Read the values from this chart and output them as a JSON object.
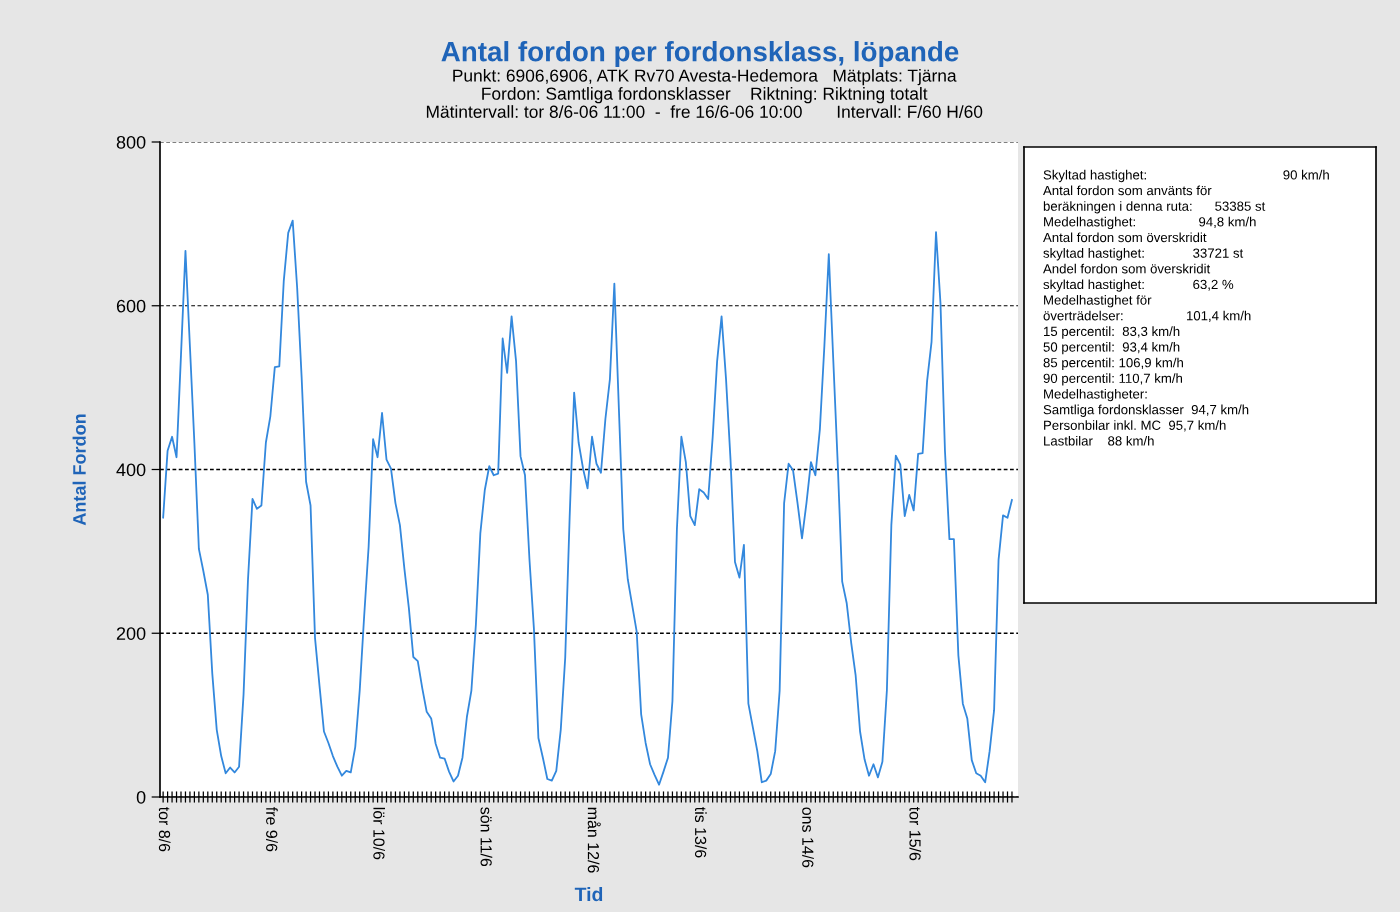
{
  "chart_data": [
    {
      "type": "line",
      "title": "Antal fordon per fordonsklass, löpande",
      "subtitle": "Punkt: 6906,6906, ATK Rv70 Avesta-Hedemora   Mätplats: Tjärna\nFordon: Samtliga fordonsklasser    Riktning: Riktning totalt\nMätintervall: tor 8/6-06 11:00  -  fre 16/6-06 10:00       Intervall: F/60 H/60",
      "xlabel": "Tid",
      "ylabel": "Antal Fordon",
      "categories": [
        "tor 8/6",
        null,
        null,
        null,
        null,
        null,
        null,
        null,
        null,
        null,
        null,
        null,
        null,
        null,
        null,
        null,
        null,
        null,
        null,
        null,
        null,
        null,
        null,
        null,
        "fre 9/6",
        null,
        null,
        null,
        null,
        null,
        null,
        null,
        null,
        null,
        null,
        null,
        null,
        null,
        null,
        null,
        null,
        null,
        null,
        null,
        null,
        null,
        null,
        null,
        "lör 10/6",
        null,
        null,
        null,
        null,
        null,
        null,
        null,
        null,
        null,
        null,
        null,
        null,
        null,
        null,
        null,
        null,
        null,
        null,
        null,
        null,
        null,
        null,
        null,
        "sön 11/6",
        null,
        null,
        null,
        null,
        null,
        null,
        null,
        null,
        null,
        null,
        null,
        null,
        null,
        null,
        null,
        null,
        null,
        null,
        null,
        null,
        null,
        null,
        null,
        "mån 12/6",
        null,
        null,
        null,
        null,
        null,
        null,
        null,
        null,
        null,
        null,
        null,
        null,
        null,
        null,
        null,
        null,
        null,
        null,
        null,
        null,
        null,
        null,
        null,
        "tis 13/6",
        null,
        null,
        null,
        null,
        null,
        null,
        null,
        null,
        null,
        null,
        null,
        null,
        null,
        null,
        null,
        null,
        null,
        null,
        null,
        null,
        null,
        null,
        null,
        "ons 14/6",
        null,
        null,
        null,
        null,
        null,
        null,
        null,
        null,
        null,
        null,
        null,
        null,
        null,
        null,
        null,
        null,
        null,
        null,
        null,
        null,
        null,
        null,
        null,
        "tor 15/6",
        null,
        null,
        null,
        null,
        null,
        null,
        null,
        null,
        null,
        null,
        null,
        null,
        null,
        null,
        null,
        null,
        null,
        null,
        null,
        null,
        null,
        null
      ],
      "series": [
        {
          "color": "#3388dd",
          "values": [
            341,
            423,
            440,
            415,
            540,
            667,
            550,
            432,
            303,
            276,
            247,
            151,
            82,
            50,
            29,
            36,
            30,
            37,
            125,
            266,
            364,
            352,
            356,
            433,
            465,
            525,
            526,
            630,
            689,
            704,
            622,
            513,
            385,
            356,
            194,
            136,
            80,
            66,
            50,
            37,
            26,
            32,
            30,
            61,
            130,
            221,
            306,
            437,
            415,
            469,
            412,
            401,
            359,
            332,
            279,
            231,
            171,
            166,
            133,
            104,
            96,
            65,
            48,
            47,
            31,
            19,
            26,
            48,
            98,
            130,
            210,
            322,
            375,
            404,
            393,
            395,
            560,
            518,
            587,
            532,
            416,
            393,
            290,
            205,
            72,
            48,
            22,
            20,
            32,
            82,
            170,
            343,
            494,
            433,
            401,
            377,
            440,
            407,
            396,
            462,
            510,
            627,
            476,
            327,
            266,
            234,
            202,
            101,
            66,
            40,
            27,
            15,
            31,
            48,
            117,
            327,
            440,
            409,
            343,
            332,
            376,
            372,
            364,
            439,
            532,
            587,
            510,
            412,
            287,
            268,
            308,
            114,
            85,
            56,
            18,
            20,
            28,
            56,
            130,
            359,
            407,
            399,
            359,
            316,
            359,
            409,
            393,
            449,
            550,
            663,
            534,
            407,
            263,
            237,
            189,
            149,
            80,
            46,
            26,
            40,
            24,
            43,
            130,
            332,
            417,
            406,
            343,
            369,
            350,
            419,
            420,
            508,
            556,
            690,
            603,
            423,
            315,
            315,
            173,
            114,
            96,
            45,
            29,
            26,
            18,
            56,
            106,
            290,
            344,
            341,
            363
          ]
        }
      ],
      "ylim": [
        0,
        800
      ],
      "yticks": [
        0,
        200,
        400,
        600,
        800
      ],
      "grid": "y"
    },
    {
      "type": "other",
      "annotations": [
        "Skyltad hastighet:                                     90 km/h",
        "Antal fordon som använts för",
        "beräkningen i denna ruta:      53385 st",
        "Medelhastighet:                 94,8 km/h",
        "Antal fordon som överskridit",
        "skyltad hastighet:             33721 st",
        "Andel fordon som överskridit",
        "skyltad hastighet:             63,2 %",
        "Medelhastighet för",
        "överträdelser:                 101,4 km/h",
        "15 percentil:  83,3 km/h",
        "50 percentil:  93,4 km/h",
        "85 percentil: 106,9 km/h",
        "90 percentil: 110,7 km/h",
        "Medelhastigheter:",
        "Samtliga fordonsklasser  94,7 km/h",
        "Personbilar inkl. MC  95,7 km/h",
        "Lastbilar    88 km/h"
      ]
    }
  ]
}
